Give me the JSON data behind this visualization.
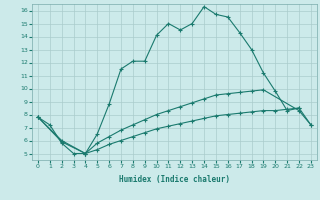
{
  "xlabel": "Humidex (Indice chaleur)",
  "bg_color": "#cceaea",
  "line_color": "#1a7a6e",
  "grid_color": "#aacccc",
  "xlim": [
    -0.5,
    23.5
  ],
  "ylim": [
    4.5,
    16.5
  ],
  "yticks": [
    5,
    6,
    7,
    8,
    9,
    10,
    11,
    12,
    13,
    14,
    15,
    16
  ],
  "xticks": [
    0,
    1,
    2,
    3,
    4,
    5,
    6,
    7,
    8,
    9,
    10,
    11,
    12,
    13,
    14,
    15,
    16,
    17,
    18,
    19,
    20,
    21,
    22,
    23
  ],
  "line1_x": [
    0,
    1,
    2,
    3,
    4,
    5,
    6,
    7,
    8,
    9,
    10,
    11,
    12,
    13,
    14,
    15,
    16,
    17,
    18,
    19,
    20,
    21,
    22
  ],
  "line1_y": [
    7.8,
    7.2,
    5.8,
    5.0,
    5.0,
    6.5,
    8.8,
    11.5,
    12.1,
    12.1,
    14.1,
    15.0,
    14.5,
    15.0,
    16.3,
    15.7,
    15.5,
    14.3,
    13.0,
    11.2,
    9.8,
    8.3,
    8.5
  ],
  "line2_x": [
    0,
    2,
    4,
    5,
    6,
    7,
    8,
    9,
    10,
    11,
    12,
    13,
    14,
    15,
    16,
    17,
    18,
    19,
    22,
    23
  ],
  "line2_y": [
    7.8,
    6.0,
    5.0,
    5.8,
    6.3,
    6.8,
    7.2,
    7.6,
    8.0,
    8.3,
    8.6,
    8.9,
    9.2,
    9.5,
    9.6,
    9.7,
    9.8,
    9.9,
    8.3,
    7.2
  ],
  "line3_x": [
    0,
    2,
    4,
    5,
    6,
    7,
    8,
    9,
    10,
    11,
    12,
    13,
    14,
    15,
    16,
    17,
    18,
    19,
    20,
    21,
    22,
    23
  ],
  "line3_y": [
    7.8,
    5.9,
    5.0,
    5.3,
    5.7,
    6.0,
    6.3,
    6.6,
    6.9,
    7.1,
    7.3,
    7.5,
    7.7,
    7.9,
    8.0,
    8.1,
    8.2,
    8.3,
    8.3,
    8.4,
    8.5,
    7.2
  ]
}
